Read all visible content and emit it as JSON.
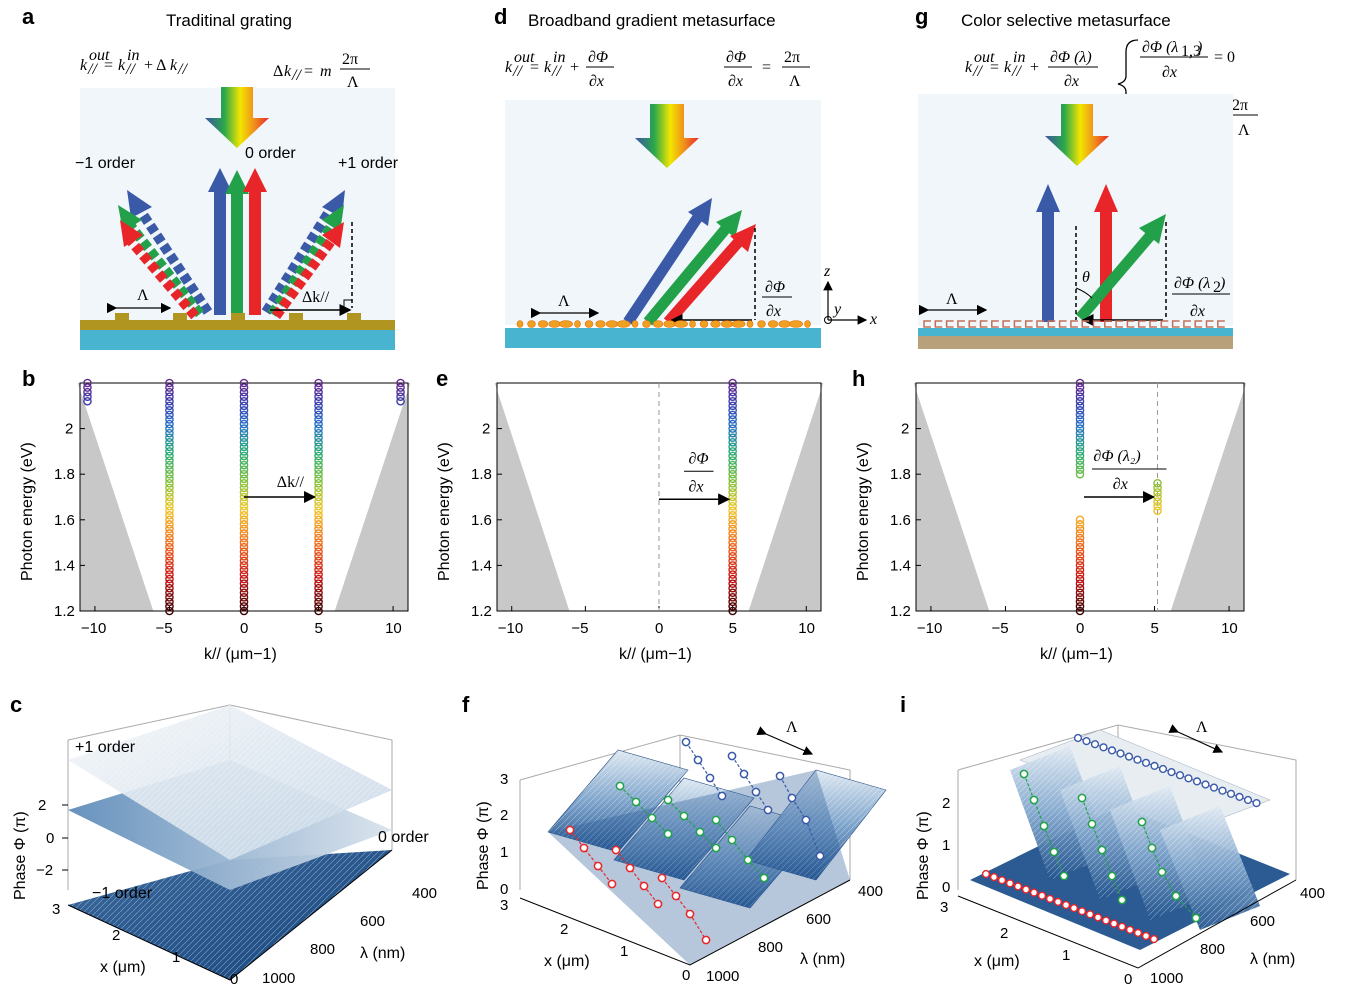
{
  "panels": {
    "a": {
      "label": "a",
      "title": "Traditinal grating",
      "eq1": "k// out = k// in + Δk//",
      "eq2": "Δk// = m 2π/Λ",
      "order_minus": "−1 order",
      "order_zero": "0 order",
      "order_plus": "+1 order",
      "period": "Λ",
      "dk": "Δk//"
    },
    "d": {
      "label": "d",
      "title": "Broadband gradient metasurface",
      "eq1": "k// out = k// in + ∂Φ/∂x",
      "eq2": "∂Φ/∂x = 2π/Λ",
      "period": "Λ",
      "grad": "∂Φ/∂x",
      "axes": [
        "z",
        "y",
        "x"
      ]
    },
    "g": {
      "label": "g",
      "title": "Color selective metasurface",
      "eq1": "k// out = k// in + ∂Φ(λ)/∂x",
      "eq2": "∂Φ(λ1,3)/∂x = 0",
      "eq3": "∂Φ(λ2)/∂x = 2π/Λ",
      "period": "Λ",
      "theta": "θ",
      "grad": "∂Φ(λ2)/∂x"
    },
    "c": {
      "label": "c",
      "ann": [
        "+1 order",
        "0 order",
        "−1 order"
      ]
    },
    "f": {
      "label": "f",
      "ann": [
        "Λ"
      ]
    },
    "i": {
      "label": "i",
      "ann": [
        "Λ"
      ]
    }
  },
  "chart_data": [
    {
      "type": "scatter",
      "panel": "b",
      "xlabel": "k// (μm−1)",
      "ylabel": "Photon energy (eV)",
      "xlim": [
        -11,
        11
      ],
      "ylim": [
        1.2,
        2.2
      ],
      "xticks": [
        "−10",
        "−5",
        "0",
        "5",
        "10"
      ],
      "yticks": [
        "1.2",
        "1.4",
        "1.6",
        "1.8",
        "2"
      ],
      "series": [
        {
          "x_positions": [
            -5,
            0,
            5
          ],
          "energy_range": [
            1.2,
            2.2
          ]
        },
        {
          "x_positions": [
            -10.5,
            10.5
          ],
          "energy_range": [
            2.1,
            2.2
          ]
        }
      ],
      "annotation": "Δk//"
    },
    {
      "type": "scatter",
      "panel": "e",
      "xlabel": "k// (μm−1)",
      "ylabel": "Photon energy (eV)",
      "xlim": [
        -11,
        11
      ],
      "ylim": [
        1.2,
        2.2
      ],
      "xticks": [
        "−10",
        "−5",
        "0",
        "5",
        "10"
      ],
      "yticks": [
        "1.2",
        "1.4",
        "1.6",
        "1.8",
        "2"
      ],
      "series": [
        {
          "x_positions": [
            5
          ],
          "energy_range": [
            1.2,
            2.2
          ]
        }
      ],
      "annotation": "∂Φ/∂x"
    },
    {
      "type": "scatter",
      "panel": "h",
      "xlabel": "k// (μm−1)",
      "ylabel": "Photon energy (eV)",
      "xlim": [
        -11,
        11
      ],
      "ylim": [
        1.2,
        2.2
      ],
      "xticks": [
        "−10",
        "−5",
        "0",
        "5",
        "10"
      ],
      "yticks": [
        "1.2",
        "1.4",
        "1.6",
        "1.8",
        "2"
      ],
      "series": [
        {
          "x_positions": [
            0
          ],
          "energy_ranges": [
            [
              1.2,
              1.6
            ],
            [
              1.8,
              2.2
            ]
          ]
        },
        {
          "x_positions": [
            5.2
          ],
          "energy_range": [
            1.63,
            1.77
          ]
        }
      ],
      "annotation": "∂Φ(λ2)/∂x"
    },
    {
      "type": "area",
      "panel": "c",
      "zlabel": "Phase Φ (π)",
      "xlabel": "x (μm)",
      "ylabel": "λ (nm)",
      "zticks": [
        "−2",
        "0",
        "2"
      ],
      "xticks": [
        "0",
        "1",
        "2",
        "3"
      ],
      "yticks": [
        "400",
        "600",
        "800",
        "1000"
      ]
    },
    {
      "type": "area",
      "panel": "f",
      "zlabel": "Phase Φ (π)",
      "xlabel": "x (μm)",
      "ylabel": "λ (nm)",
      "zticks": [
        "0",
        "1",
        "2",
        "3"
      ],
      "xticks": [
        "0",
        "1",
        "2",
        "3"
      ],
      "yticks": [
        "400",
        "600",
        "800",
        "1000"
      ]
    },
    {
      "type": "area",
      "panel": "i",
      "zlabel": "Phase Φ (π)",
      "xlabel": "x (μm)",
      "ylabel": "λ (nm)",
      "zticks": [
        "0",
        "1",
        "2"
      ],
      "xticks": [
        "0",
        "1",
        "2",
        "3"
      ],
      "yticks": [
        "400",
        "600",
        "800",
        "1000"
      ]
    }
  ],
  "colors": {
    "blue": "#3a5aa8",
    "green": "#22a14a",
    "red": "#e8262a",
    "substrate": "#48b4cf",
    "gold": "#b09520",
    "gray": "#c8c8c8",
    "surface": "#2f5f9a"
  }
}
